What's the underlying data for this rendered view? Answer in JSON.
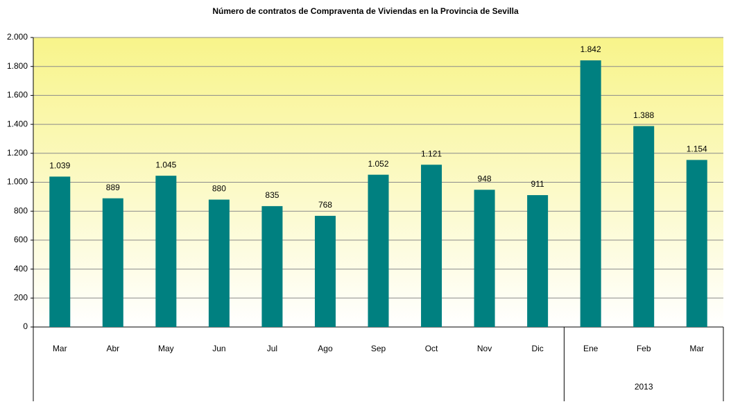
{
  "chart_data": {
    "type": "bar",
    "title": "Número de contratos de Compraventa de Viviendas en la Provincia de Sevilla",
    "categories": [
      "Mar",
      "Abr",
      "May",
      "Jun",
      "Jul",
      "Ago",
      "Sep",
      "Oct",
      "Nov",
      "Dic",
      "Ene",
      "Feb",
      "Mar"
    ],
    "category_groups": [
      null,
      null,
      null,
      null,
      null,
      null,
      null,
      null,
      null,
      null,
      "2013",
      "2013",
      "2013"
    ],
    "values": [
      1039,
      889,
      1045,
      880,
      835,
      768,
      1052,
      1121,
      948,
      911,
      1842,
      1388,
      1154
    ],
    "value_labels": [
      "1.039",
      "889",
      "1.045",
      "880",
      "835",
      "768",
      "1.052",
      "1.121",
      "948",
      "911",
      "1.842",
      "1.388",
      "1.154"
    ],
    "color": "#008080",
    "ylim": [
      0,
      2000
    ],
    "yticks": [
      0,
      200,
      400,
      600,
      800,
      {
        "value": 1000,
        "label": "1.000"
      },
      {
        "value": 1200,
        "label": "1.200"
      },
      {
        "value": 1400,
        "label": "1.400"
      },
      {
        "value": 1600,
        "label": "1.600"
      },
      {
        "value": 1800,
        "label": "1.800"
      },
      {
        "value": 2000,
        "label": "2.000"
      }
    ],
    "grid": true
  }
}
